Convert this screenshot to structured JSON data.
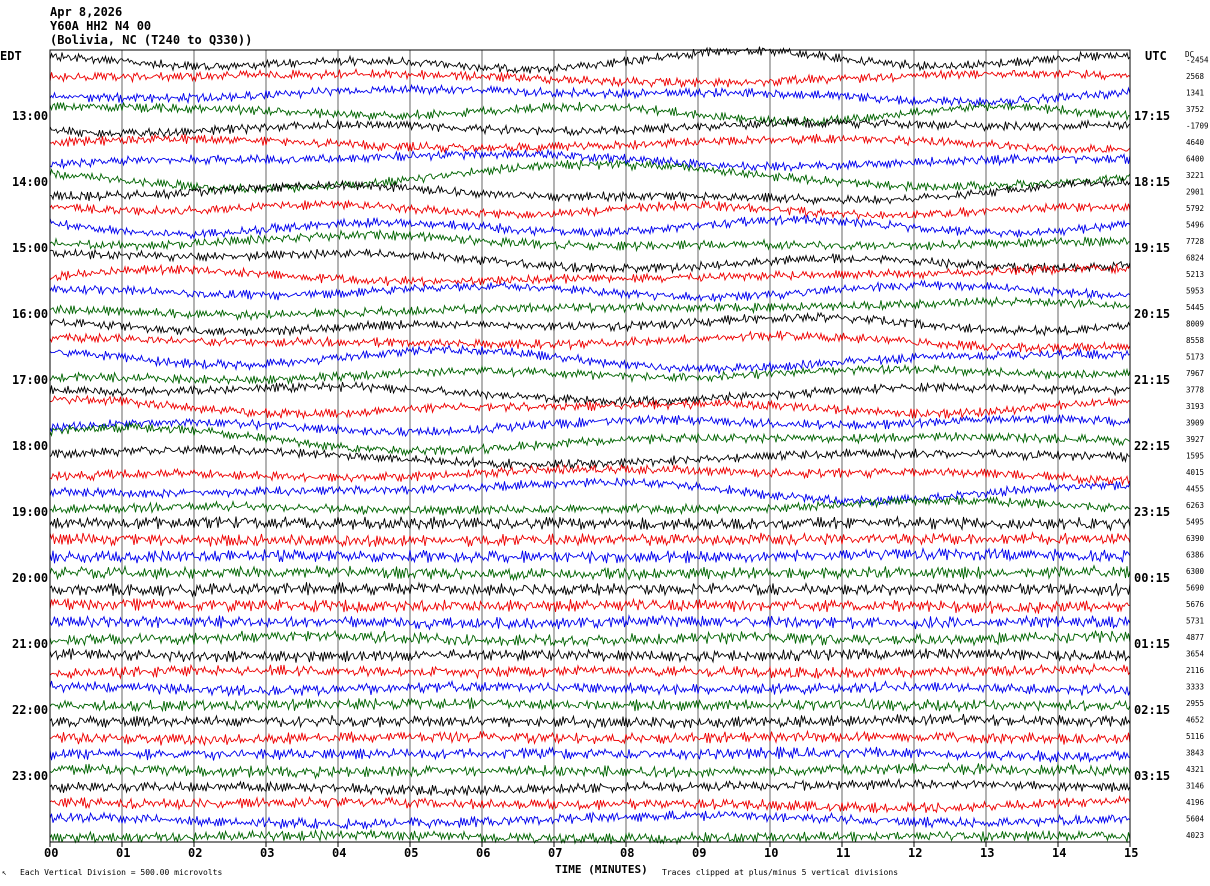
{
  "header": {
    "date": "Apr 8,2026",
    "station": "Y60A HH2 N4 00",
    "location": "(Bolivia, NC (T240 to Q330))"
  },
  "left_tz": "EDT",
  "right_tz": "UTC",
  "dc_label": "DC",
  "footer": {
    "division": "Each Vertical Division =  500.00 microvolts",
    "clipped": "Traces clipped at plus/minus 5 vertical divisions"
  },
  "colors": {
    "trace_cycle": [
      "#000000",
      "#ee0000",
      "#0000ee",
      "#006400"
    ],
    "grid": "#000000",
    "background": "#ffffff"
  },
  "chart_data": {
    "type": "line",
    "subtype": "helicorder",
    "xlabel": "TIME (MINUTES)",
    "x_ticks": [
      "00",
      "01",
      "02",
      "03",
      "04",
      "05",
      "06",
      "07",
      "08",
      "09",
      "10",
      "11",
      "12",
      "13",
      "14",
      "15"
    ],
    "xlim": [
      0,
      15
    ],
    "trace_minutes": 15,
    "num_traces": 48,
    "left_labels": [
      "13:00",
      "14:00",
      "15:00",
      "16:00",
      "17:00",
      "18:00",
      "19:00",
      "20:00",
      "21:00",
      "22:00",
      "23:00"
    ],
    "left_label_first_trace": 4,
    "right_labels": [
      "17:15",
      "18:15",
      "19:15",
      "20:15",
      "21:15",
      "22:15",
      "23:15",
      "00:15",
      "01:15",
      "02:15",
      "03:15"
    ],
    "right_label_first_trace": 4,
    "label_every_traces": 4,
    "dc_values": [
      "-2454",
      "2568",
      "1341",
      "3752",
      "-1709",
      "4640",
      "6400",
      "3221",
      "2901",
      "5792",
      "5496",
      "7728",
      "6824",
      "5213",
      "5953",
      "5445",
      "8009",
      "8558",
      "5173",
      "7967",
      "3778",
      "3193",
      "3909",
      "3927",
      "1595",
      "4015",
      "4455",
      "6263",
      "5495",
      "6390",
      "6386",
      "6300",
      "5690",
      "5676",
      "5731",
      "4877",
      "3654",
      "2116",
      "3333",
      "2955",
      "4652",
      "5116",
      "3843",
      "4321",
      "3146",
      "4196",
      "5604",
      "4023"
    ],
    "noise_level": [
      1.0,
      1.0,
      1.0,
      1.0,
      1.0,
      1.0,
      1.0,
      1.0,
      1.0,
      1.0,
      1.0,
      1.0,
      1.0,
      1.0,
      1.0,
      1.0,
      1.0,
      1.0,
      1.0,
      1.0,
      1.0,
      1.0,
      1.0,
      1.0,
      1.0,
      1.0,
      1.0,
      1.0,
      1.3,
      1.3,
      1.3,
      1.3,
      1.3,
      1.3,
      1.3,
      1.3,
      1.2,
      1.2,
      1.2,
      1.2,
      1.2,
      1.2,
      1.2,
      1.2,
      1.1,
      1.1,
      1.1,
      1.1
    ],
    "swell_level": [
      1.0,
      1.0,
      1.0,
      1.0,
      1.0,
      1.0,
      1.0,
      1.0,
      1.0,
      1.0,
      1.0,
      1.0,
      1.0,
      1.0,
      1.0,
      1.0,
      1.0,
      1.0,
      1.0,
      1.0,
      1.0,
      1.0,
      1.0,
      1.0,
      0.9,
      0.9,
      0.9,
      0.9,
      0.15,
      0.15,
      0.15,
      0.15,
      0.15,
      0.15,
      0.15,
      0.4,
      0.2,
      0.2,
      0.2,
      0.2,
      0.2,
      0.2,
      0.2,
      0.2,
      0.3,
      0.5,
      0.5,
      0.3
    ]
  }
}
